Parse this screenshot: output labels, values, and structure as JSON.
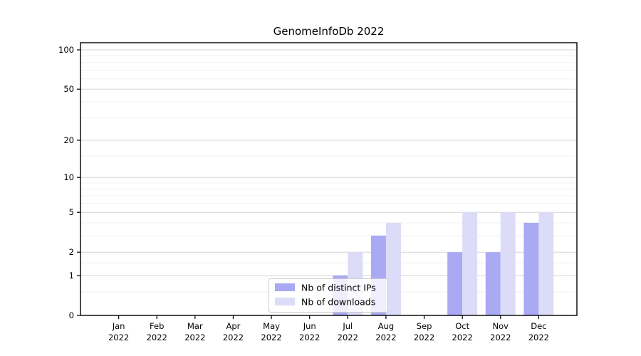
{
  "figure": {
    "title": "GenomeInfoDb 2022"
  },
  "chart_data": {
    "type": "bar",
    "title": "GenomeInfoDb 2022",
    "scale": "log1p",
    "grid": "horizontal",
    "legend_position": "inside-bottom-center",
    "categories": [
      "Jan 2022",
      "Feb 2022",
      "Mar 2022",
      "Apr 2022",
      "May 2022",
      "Jun 2022",
      "Jul 2022",
      "Aug 2022",
      "Sep 2022",
      "Oct 2022",
      "Nov 2022",
      "Dec 2022"
    ],
    "series": [
      {
        "name": "Nb of distinct IPs",
        "color": "#a9a9f4",
        "values": [
          0,
          0,
          0,
          0,
          0,
          0,
          1,
          3,
          0,
          2,
          2,
          4
        ]
      },
      {
        "name": "Nb of downloads",
        "color": "#dcdcf8",
        "values": [
          0,
          0,
          0,
          0,
          0,
          0,
          2,
          4,
          0,
          5,
          5,
          5
        ]
      }
    ],
    "yticks": [
      0,
      1,
      2,
      5,
      10,
      20,
      50,
      100
    ],
    "minor_gridlines": [
      0.5,
      1.5,
      3,
      4,
      6,
      7,
      8,
      9,
      15,
      30,
      40,
      60,
      70,
      80,
      90
    ],
    "ylim": [
      0,
      113
    ],
    "axis_color": "#000000",
    "major_grid_color": "#d6d6d6",
    "minor_grid_color": "#f0f0f0",
    "legend_border_color": "#cccccc"
  }
}
